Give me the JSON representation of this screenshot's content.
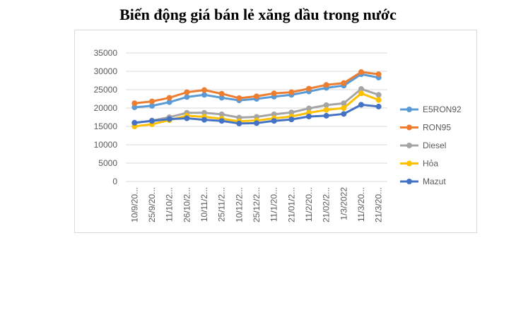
{
  "title": "Biến động giá bán lẻ xăng dầu trong nước",
  "chart_data": {
    "type": "line",
    "title": "Biến động giá bán lẻ xăng dầu trong nước",
    "xlabel": "",
    "ylabel": "",
    "ylim": [
      0,
      35000
    ],
    "yticks": [
      0,
      5000,
      10000,
      15000,
      20000,
      25000,
      30000,
      35000
    ],
    "grid": "horizontal",
    "legend_position": "right",
    "categories": [
      "10/9/20...",
      "25/9/20...",
      "11/10/2...",
      "26/10/2...",
      "10/11/2...",
      "25/11/2...",
      "10/12/2...",
      "25/12/2...",
      "11/1/20...",
      "21/01/2...",
      "11/2/20...",
      "21/02/2...",
      "1/3/2022",
      "11/3/20...",
      "21/3/20..."
    ],
    "series": [
      {
        "name": "E5RON92",
        "color": "#5b9bd5",
        "values": [
          20200,
          20600,
          21600,
          23000,
          23600,
          22800,
          22100,
          22500,
          23100,
          23600,
          24500,
          25500,
          26100,
          29200,
          28300
        ]
      },
      {
        "name": "RON95",
        "color": "#ed7d31",
        "values": [
          21300,
          21800,
          22800,
          24300,
          24900,
          23900,
          22700,
          23200,
          24000,
          24300,
          25300,
          26300,
          26800,
          29800,
          29200
        ]
      },
      {
        "name": "Diesel",
        "color": "#a5a5a5",
        "values": [
          15900,
          16600,
          17500,
          18700,
          18700,
          18300,
          17400,
          17600,
          18300,
          18800,
          19900,
          20800,
          21300,
          25200,
          23600
        ]
      },
      {
        "name": "Hỏa",
        "color": "#ffc000",
        "values": [
          15000,
          15600,
          16700,
          17900,
          17600,
          17100,
          16400,
          16600,
          17200,
          17700,
          18700,
          19500,
          20000,
          24000,
          22200
        ]
      },
      {
        "name": "Mazut",
        "color": "#4472c4",
        "values": [
          16000,
          16500,
          17000,
          17200,
          16800,
          16500,
          15800,
          15900,
          16500,
          16900,
          17700,
          17900,
          18400,
          20900,
          20400
        ]
      }
    ]
  }
}
